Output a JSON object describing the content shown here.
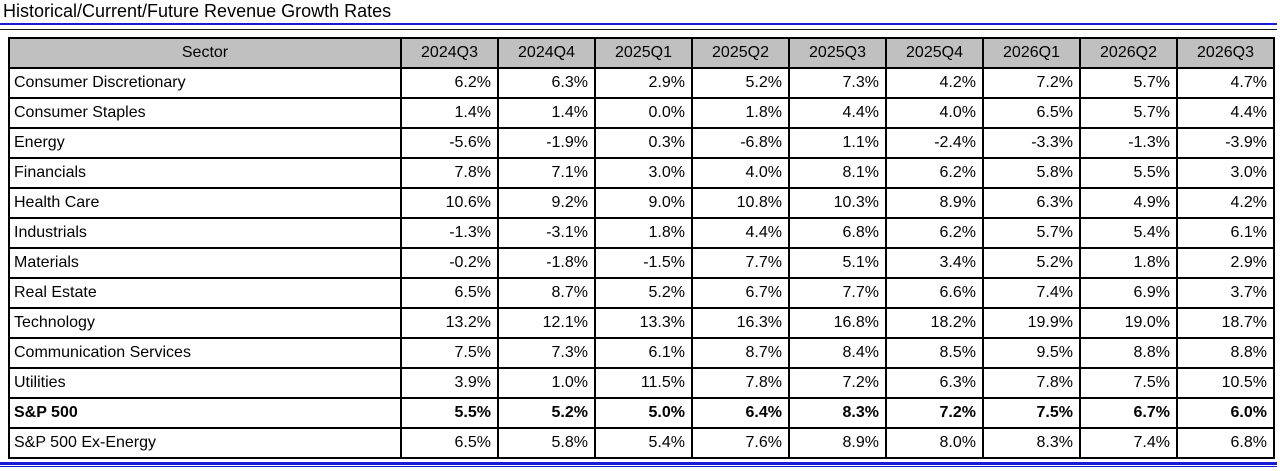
{
  "title": "Historical/Current/Future Revenue Growth Rates",
  "colors": {
    "accent_blue": "#1b1bd6",
    "header_bg": "#c0c0c0",
    "grid_border": "#000000",
    "text": "#000000"
  },
  "chart_data": {
    "type": "table",
    "title": "Historical/Current/Future Revenue Growth Rates",
    "columns": [
      "Sector",
      "2024Q3",
      "2024Q4",
      "2025Q1",
      "2025Q2",
      "2025Q3",
      "2025Q4",
      "2026Q1",
      "2026Q2",
      "2026Q3"
    ],
    "rows": [
      {
        "sector": "Consumer Discretionary",
        "values": [
          "6.2%",
          "6.3%",
          "2.9%",
          "5.2%",
          "7.3%",
          "4.2%",
          "7.2%",
          "5.7%",
          "4.7%"
        ],
        "bold": false
      },
      {
        "sector": "Consumer Staples",
        "values": [
          "1.4%",
          "1.4%",
          "0.0%",
          "1.8%",
          "4.4%",
          "4.0%",
          "6.5%",
          "5.7%",
          "4.4%"
        ],
        "bold": false
      },
      {
        "sector": "Energy",
        "values": [
          "-5.6%",
          "-1.9%",
          "0.3%",
          "-6.8%",
          "1.1%",
          "-2.4%",
          "-3.3%",
          "-1.3%",
          "-3.9%"
        ],
        "bold": false
      },
      {
        "sector": "Financials",
        "values": [
          "7.8%",
          "7.1%",
          "3.0%",
          "4.0%",
          "8.1%",
          "6.2%",
          "5.8%",
          "5.5%",
          "3.0%"
        ],
        "bold": false
      },
      {
        "sector": "Health Care",
        "values": [
          "10.6%",
          "9.2%",
          "9.0%",
          "10.8%",
          "10.3%",
          "8.9%",
          "6.3%",
          "4.9%",
          "4.2%"
        ],
        "bold": false
      },
      {
        "sector": "Industrials",
        "values": [
          "-1.3%",
          "-3.1%",
          "1.8%",
          "4.4%",
          "6.8%",
          "6.2%",
          "5.7%",
          "5.4%",
          "6.1%"
        ],
        "bold": false
      },
      {
        "sector": "Materials",
        "values": [
          "-0.2%",
          "-1.8%",
          "-1.5%",
          "7.7%",
          "5.1%",
          "3.4%",
          "5.2%",
          "1.8%",
          "2.9%"
        ],
        "bold": false
      },
      {
        "sector": "Real Estate",
        "values": [
          "6.5%",
          "8.7%",
          "5.2%",
          "6.7%",
          "7.7%",
          "6.6%",
          "7.4%",
          "6.9%",
          "3.7%"
        ],
        "bold": false
      },
      {
        "sector": "Technology",
        "values": [
          "13.2%",
          "12.1%",
          "13.3%",
          "16.3%",
          "16.8%",
          "18.2%",
          "19.9%",
          "19.0%",
          "18.7%"
        ],
        "bold": false
      },
      {
        "sector": "Communication Services",
        "values": [
          "7.5%",
          "7.3%",
          "6.1%",
          "8.7%",
          "8.4%",
          "8.5%",
          "9.5%",
          "8.8%",
          "8.8%"
        ],
        "bold": false
      },
      {
        "sector": "Utilities",
        "values": [
          "3.9%",
          "1.0%",
          "11.5%",
          "7.8%",
          "7.2%",
          "6.3%",
          "7.8%",
          "7.5%",
          "10.5%"
        ],
        "bold": false
      },
      {
        "sector": "S&P 500",
        "values": [
          "5.5%",
          "5.2%",
          "5.0%",
          "6.4%",
          "8.3%",
          "7.2%",
          "7.5%",
          "6.7%",
          "6.0%"
        ],
        "bold": true
      },
      {
        "sector": "S&P 500 Ex-Energy",
        "values": [
          "6.5%",
          "5.8%",
          "5.4%",
          "7.6%",
          "8.9%",
          "8.0%",
          "8.3%",
          "7.4%",
          "6.8%"
        ],
        "bold": false
      }
    ]
  }
}
